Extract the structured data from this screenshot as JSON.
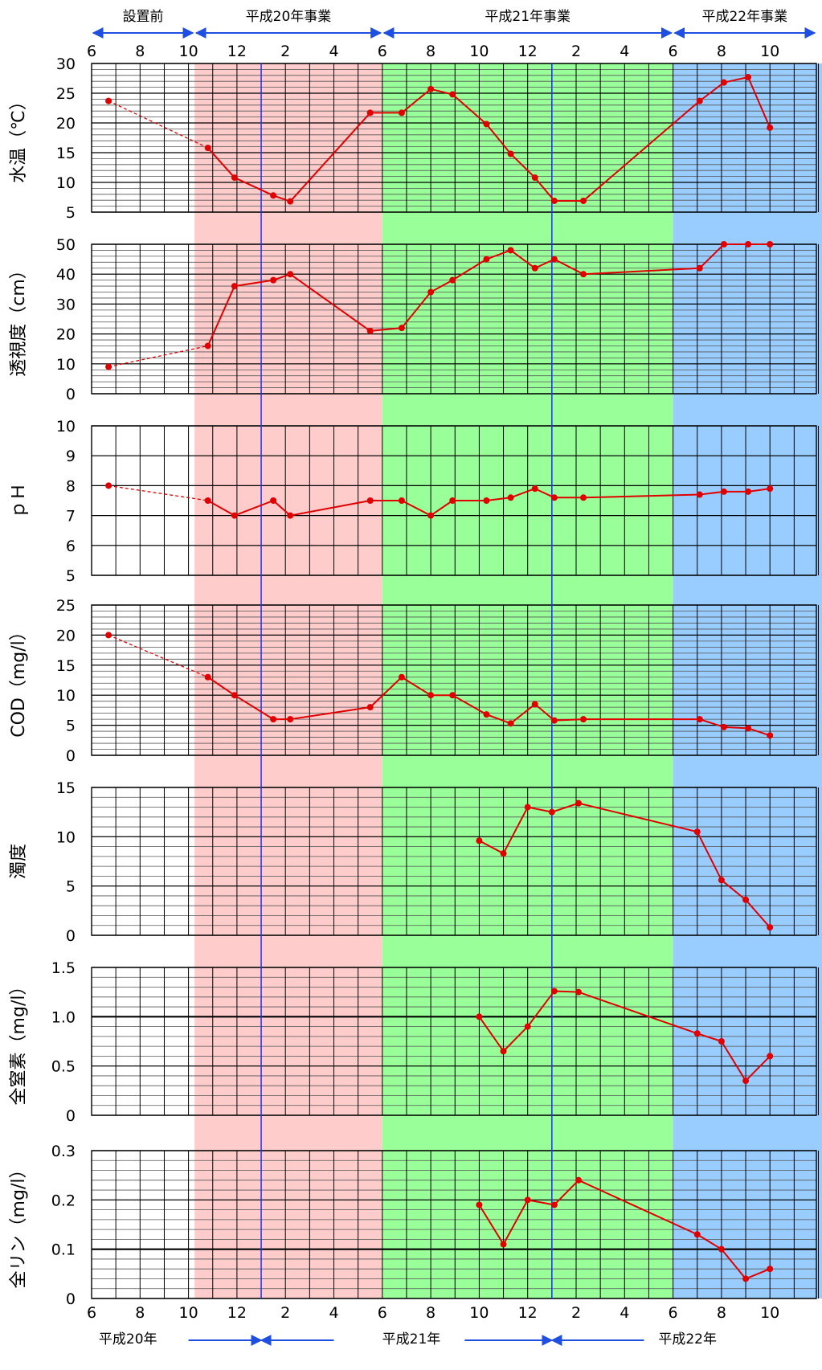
{
  "chart_data": {
    "type": "line",
    "color": "#e00000",
    "line_color": "#e00000",
    "phases": [
      {
        "label": "設置前",
        "start": 0,
        "end": 4.25,
        "fill": "#ffffff"
      },
      {
        "label": "平成20年事業",
        "start": 4.25,
        "end": 12,
        "fill": "#ffcccc"
      },
      {
        "label": "平成21年事業",
        "start": 12,
        "end": 24,
        "fill": "#99ff99"
      },
      {
        "label": "平成22年事業",
        "start": 24,
        "end": 30.3,
        "fill": "#99ccff"
      }
    ],
    "month_ticks": [
      {
        "i": 0,
        "label": "6"
      },
      {
        "i": 2,
        "label": "8"
      },
      {
        "i": 4,
        "label": "10"
      },
      {
        "i": 6,
        "label": "12"
      },
      {
        "i": 8,
        "label": "2"
      },
      {
        "i": 10,
        "label": "4"
      },
      {
        "i": 12,
        "label": "6"
      },
      {
        "i": 14,
        "label": "8"
      },
      {
        "i": 16,
        "label": "10"
      },
      {
        "i": 18,
        "label": "12"
      },
      {
        "i": 20,
        "label": "2"
      },
      {
        "i": 22,
        "label": "4"
      },
      {
        "i": 24,
        "label": "6"
      },
      {
        "i": 26,
        "label": "8"
      },
      {
        "i": 28,
        "label": "10"
      }
    ],
    "year_labels": [
      {
        "label": "平成20年",
        "i": 1.5
      },
      {
        "label": "平成21年",
        "i": 13.2
      },
      {
        "label": "平成22年",
        "i": 24.6
      }
    ],
    "year_boundaries": [
      7,
      19
    ],
    "panels": [
      {
        "name": "water-temp",
        "ylabel": "水温（℃）",
        "ylim": [
          5,
          30
        ],
        "major_step": 5,
        "minor_step": 1,
        "tick_labels": [
          "5",
          "10",
          "15",
          "20",
          "25",
          "30"
        ],
        "ref_lines": [],
        "x": [
          0.7,
          4.8,
          5.9,
          7.5,
          8.2,
          11.5,
          12.8,
          14.0,
          14.9,
          16.3,
          17.3,
          18.3,
          19.1,
          20.3,
          25.1,
          26.1,
          27.1,
          28.0
        ],
        "y": [
          23.7,
          15.8,
          10.8,
          7.8,
          6.8,
          21.7,
          21.7,
          25.7,
          24.8,
          19.8,
          14.8,
          10.8,
          6.9,
          6.9,
          23.7,
          26.8,
          27.7,
          19.2
        ],
        "dashed_to": 1
      },
      {
        "name": "transparency",
        "ylabel": "透視度（cm）",
        "ylim": [
          0,
          50
        ],
        "major_step": 10,
        "minor_step": 2,
        "tick_labels": [
          "0",
          "10",
          "20",
          "30",
          "40",
          "50"
        ],
        "ref_lines": [],
        "x": [
          0.7,
          4.8,
          5.9,
          7.5,
          8.2,
          11.5,
          12.8,
          14.0,
          14.9,
          16.3,
          17.3,
          18.3,
          19.1,
          20.3,
          25.1,
          26.1,
          27.1,
          28.0
        ],
        "y": [
          9,
          16,
          36,
          38,
          40,
          21,
          22,
          34,
          38,
          45,
          48,
          42,
          45,
          40,
          42,
          50,
          50,
          50
        ],
        "dashed_to": 1
      },
      {
        "name": "ph",
        "ylabel": "ｐＨ",
        "ylim": [
          5,
          10
        ],
        "major_step": 1,
        "minor_step": 1,
        "tick_labels": [
          "5",
          "6",
          "7",
          "8",
          "9",
          "10"
        ],
        "ref_lines": [],
        "x": [
          0.7,
          4.8,
          5.9,
          7.5,
          8.2,
          11.5,
          12.8,
          14.0,
          14.9,
          16.3,
          17.3,
          18.3,
          19.1,
          20.3,
          25.1,
          26.1,
          27.1,
          28.0
        ],
        "y": [
          8.0,
          7.5,
          7.0,
          7.5,
          7.0,
          7.5,
          7.5,
          7.0,
          7.5,
          7.5,
          7.6,
          7.9,
          7.6,
          7.6,
          7.7,
          7.8,
          7.8,
          7.9
        ],
        "dashed_to": 1
      },
      {
        "name": "cod",
        "ylabel": "COD（mg/l）",
        "ylim": [
          0,
          25
        ],
        "major_step": 5,
        "minor_step": 1,
        "tick_labels": [
          "0",
          "5",
          "10",
          "15",
          "20",
          "25"
        ],
        "ref_lines": [],
        "x": [
          0.7,
          4.8,
          5.9,
          7.5,
          8.2,
          11.5,
          12.8,
          14.0,
          14.9,
          16.3,
          17.3,
          18.3,
          19.1,
          20.3,
          25.1,
          26.1,
          27.1,
          28.0
        ],
        "y": [
          20.0,
          13.0,
          10.0,
          6.0,
          6.0,
          8.0,
          13.0,
          10.0,
          10.0,
          6.8,
          5.3,
          8.5,
          5.8,
          6.0,
          6.0,
          4.7,
          4.5,
          3.3
        ],
        "dashed_to": 1
      },
      {
        "name": "turbidity",
        "ylabel": "濁度",
        "ylim": [
          0,
          15
        ],
        "major_step": 5,
        "minor_step": 1,
        "tick_labels": [
          "0",
          "5",
          "10",
          "15"
        ],
        "ref_lines": [],
        "x": [
          16.0,
          17.0,
          18.0,
          19.0,
          20.1,
          25.0,
          26.0,
          27.0,
          28.0
        ],
        "y": [
          9.6,
          8.3,
          13.0,
          12.5,
          13.4,
          10.5,
          5.6,
          3.6,
          0.8
        ],
        "dashed_to": 0
      },
      {
        "name": "total-nitrogen",
        "ylabel": "全窒素（mg/l）",
        "ylim": [
          0,
          1.5
        ],
        "major_step": 0.5,
        "minor_step": 0.1,
        "tick_labels": [
          "0",
          "0.5",
          "1.0",
          "1.5"
        ],
        "ref_lines": [
          1.0
        ],
        "x": [
          16.0,
          17.0,
          18.0,
          19.1,
          20.1,
          25.0,
          26.0,
          27.0,
          28.0
        ],
        "y": [
          1.0,
          0.65,
          0.9,
          1.26,
          1.25,
          0.83,
          0.75,
          0.35,
          0.6
        ],
        "dashed_to": 0
      },
      {
        "name": "total-phosphorus",
        "ylabel": "全リン（mg/l）",
        "ylim": [
          0,
          0.3
        ],
        "major_step": 0.1,
        "minor_step": 0.02,
        "tick_labels": [
          "0",
          "0.1",
          "0.2",
          "0.3"
        ],
        "ref_lines": [
          0.1
        ],
        "x": [
          16.0,
          17.0,
          18.0,
          19.1,
          20.1,
          25.0,
          26.0,
          27.0,
          28.0
        ],
        "y": [
          0.19,
          0.11,
          0.2,
          0.19,
          0.24,
          0.13,
          0.1,
          0.04,
          0.06
        ],
        "dashed_to": 0
      }
    ]
  }
}
